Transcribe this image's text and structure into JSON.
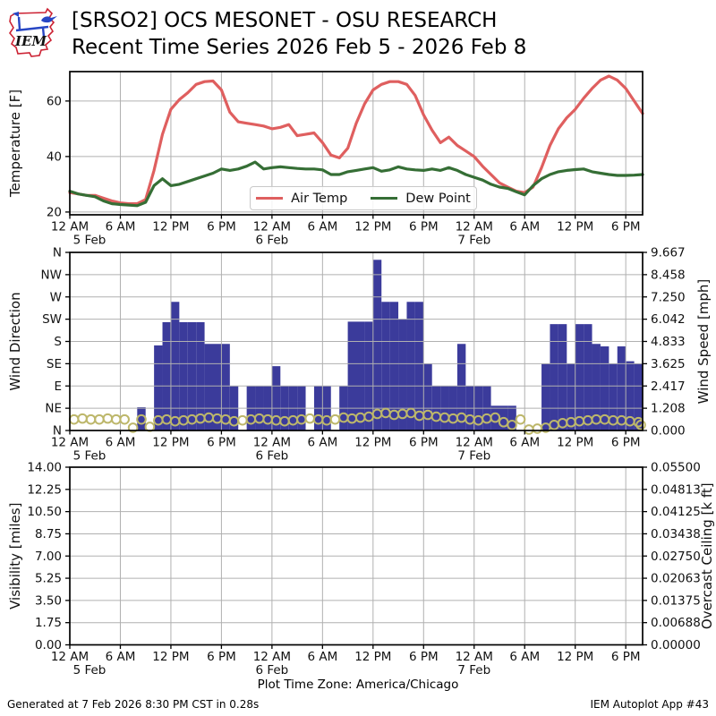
{
  "header": {
    "logo_text": "IEM",
    "title_line1": "[SRSO2] OCS MESONET - OSU RESEARCH",
    "title_line2": "Recent Time Series 2026 Feb 5 - 2026 Feb 8"
  },
  "x_axis": {
    "xlim_hours": [
      0,
      68
    ],
    "tick_hours": [
      0,
      6,
      12,
      18,
      24,
      30,
      36,
      42,
      48,
      54,
      60,
      66
    ],
    "tick_labels": [
      "12 AM",
      "6 AM",
      "12 PM",
      "6 PM",
      "12 AM",
      "6 AM",
      "12 PM",
      "6 PM",
      "12 AM",
      "6 AM",
      "12 PM",
      "6 PM"
    ],
    "day_labels": [
      {
        "hour": 0,
        "label": "5 Feb"
      },
      {
        "hour": 24,
        "label": "6 Feb"
      },
      {
        "hour": 48,
        "label": "7 Feb"
      }
    ]
  },
  "chart_data": [
    {
      "type": "line",
      "ylabel": "Temperature [F]",
      "yticks": [
        20,
        40,
        60
      ],
      "ylim": [
        19,
        70.6
      ],
      "grid": true,
      "legend_position": "lower center",
      "series": [
        {
          "name": "Air Temp",
          "color": "#df5f5f",
          "values": [
            27,
            26.5,
            26,
            26,
            25,
            24,
            23.3,
            23,
            23,
            24.5,
            35,
            48,
            57,
            60.5,
            63,
            66,
            67,
            67.2,
            64,
            56,
            52.5,
            52,
            51.5,
            51,
            50,
            50.5,
            51.5,
            47.5,
            48,
            48.5,
            45,
            40.5,
            39.5,
            43,
            52,
            59,
            64,
            66,
            67,
            67,
            66,
            62,
            55,
            49.5,
            45,
            47,
            44,
            42,
            40,
            36.5,
            33.5,
            30.5,
            29,
            27.5,
            27,
            29,
            36,
            44,
            50,
            54,
            57,
            61,
            64.5,
            67.5,
            69,
            67.5,
            64.5,
            60,
            55.5
          ]
        },
        {
          "name": "Dew Point",
          "color": "#356e35",
          "values": [
            27.5,
            26.5,
            26,
            25.5,
            24,
            23,
            22.7,
            22.5,
            22.3,
            23.5,
            29.5,
            32,
            29.5,
            30,
            31,
            32,
            33,
            34,
            35.5,
            35,
            35.5,
            36.5,
            38,
            35.5,
            36,
            36.3,
            36,
            35.7,
            35.5,
            35.5,
            35.2,
            33.5,
            33.5,
            34.5,
            35,
            35.5,
            36,
            34.7,
            35.2,
            36.3,
            35.5,
            35.2,
            35,
            35.5,
            35,
            36,
            35,
            33.5,
            32.5,
            31.5,
            30,
            29,
            28.5,
            27.3,
            26.2,
            29.5,
            32,
            33.5,
            34.5,
            35,
            35.3,
            35.5,
            34.5,
            34,
            33.5,
            33.2,
            33.2,
            33.3,
            33.5
          ]
        }
      ]
    },
    {
      "type": "bar+scatter",
      "ylabel": "Wind Direction",
      "ytick_labels": [
        "N",
        "NE",
        "E",
        "SE",
        "S",
        "SW",
        "W",
        "NW",
        "N"
      ],
      "yticks_deg": [
        0,
        45,
        90,
        135,
        180,
        225,
        270,
        315,
        360
      ],
      "y2label": "Wind Speed [mph]",
      "y2tick_labels": [
        "0.000",
        "1.208",
        "2.417",
        "3.625",
        "4.833",
        "6.042",
        "7.250",
        "8.458",
        "9.667"
      ],
      "y2lim": [
        0,
        9.667
      ],
      "bar_color": "#3b3b9b",
      "marker_color": "#bdb76b",
      "bars_direction_deg": [
        0,
        0,
        0,
        0,
        0,
        0,
        0,
        0,
        47,
        0,
        172,
        219,
        260,
        219,
        219,
        219,
        175,
        175,
        175,
        90,
        0,
        90,
        90,
        90,
        130,
        90,
        90,
        90,
        0,
        90,
        90,
        0,
        90,
        220,
        220,
        220,
        345,
        260,
        260,
        225,
        260,
        260,
        135,
        90,
        90,
        90,
        175,
        90,
        90,
        90,
        50,
        50,
        50,
        0,
        0,
        0,
        135,
        215,
        215,
        135,
        215,
        215,
        175,
        170,
        135,
        170,
        140,
        135,
        90
      ],
      "scatter_speed_mph": [
        0.6,
        0.65,
        0.6,
        0.6,
        0.65,
        0.6,
        0.6,
        0.15,
        0.6,
        0.2,
        0.55,
        0.6,
        0.5,
        0.55,
        0.6,
        0.65,
        0.7,
        0.65,
        0.6,
        0.5,
        0.55,
        0.6,
        0.65,
        0.6,
        0.55,
        0.5,
        0.55,
        0.6,
        0.65,
        0.6,
        0.55,
        0.6,
        0.7,
        0.65,
        0.7,
        0.75,
        0.9,
        0.95,
        0.85,
        0.9,
        0.95,
        0.8,
        0.85,
        0.75,
        0.7,
        0.65,
        0.7,
        0.6,
        0.55,
        0.65,
        0.7,
        0.45,
        0.3,
        0.6,
        0.05,
        0.1,
        0.15,
        0.3,
        0.4,
        0.45,
        0.5,
        0.55,
        0.6,
        0.6,
        0.55,
        0.55,
        0.5,
        0.45,
        0.3
      ]
    },
    {
      "type": "line",
      "ylabel": "Visibility [miles]",
      "ytick_labels": [
        "0.00",
        "1.75",
        "3.50",
        "5.25",
        "7.00",
        "8.75",
        "10.50",
        "12.25",
        "14.00"
      ],
      "ylim": [
        0,
        14
      ],
      "y2label": "Overcast Ceiling [k ft]",
      "y2label_color": "#008000",
      "y2tick_labels": [
        "0.00000",
        "0.00688",
        "0.01375",
        "0.02063",
        "0.02750",
        "0.03438",
        "0.04125",
        "0.04813",
        "0.05500"
      ],
      "series": []
    }
  ],
  "footer": {
    "timezone_label": "Plot Time Zone: America/Chicago",
    "generated": "Generated at 7 Feb 2026 8:30 PM CST in 0.28s",
    "app_label": "IEM Autoplot App #43"
  }
}
